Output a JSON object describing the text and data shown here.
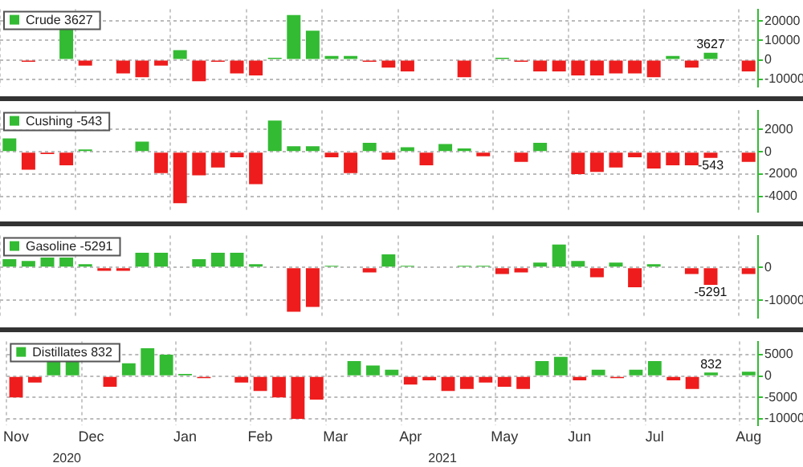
{
  "chart_data": [
    {
      "type": "bar",
      "categories": [
        null,
        null,
        null,
        null,
        null,
        null,
        null,
        null,
        null,
        null,
        null,
        null,
        null,
        null,
        null,
        null,
        null,
        null,
        null,
        null,
        null,
        null,
        null,
        null,
        null,
        null,
        null,
        null,
        null,
        null,
        null,
        null,
        null,
        null,
        null,
        null,
        null,
        null,
        null,
        null
      ],
      "series": [
        {
          "name": "Crude 3627",
          "color": "#33bb33",
          "values": [
            0,
            -1000,
            0,
            16000,
            -3000,
            0,
            -7000,
            -9000,
            -3000,
            5000,
            -11000,
            -1000,
            -7000,
            -8000,
            1000,
            23000,
            15000,
            2000,
            2000,
            -1000,
            -4000,
            -6000,
            0,
            0,
            -9000,
            0,
            1000,
            -1000,
            -6000,
            -6000,
            -8000,
            -8000,
            -7000,
            -7000,
            -9000,
            2000,
            -4000,
            3627,
            null,
            -6000
          ],
          "colors": [
            "#33bb33",
            "#ee1c1c",
            "#ee1c1c",
            "#33bb33",
            "#ee1c1c",
            "#ee1c1c",
            "#ee1c1c",
            "#ee1c1c",
            "#ee1c1c",
            "#33bb33",
            "#ee1c1c",
            "#ee1c1c",
            "#ee1c1c",
            "#ee1c1c",
            "#33bb33",
            "#33bb33",
            "#33bb33",
            "#33bb33",
            "#33bb33",
            "#ee1c1c",
            "#ee1c1c",
            "#ee1c1c",
            "#33bb33",
            "#33bb33",
            "#ee1c1c",
            "#ee1c1c",
            "#33bb33",
            "#ee1c1c",
            "#ee1c1c",
            "#ee1c1c",
            "#ee1c1c",
            "#ee1c1c",
            "#ee1c1c",
            "#ee1c1c",
            "#ee1c1c",
            "#33bb33",
            "#ee1c1c",
            "#33bb33",
            null,
            "#ee1c1c"
          ],
          "value_labels": [
            null,
            null,
            null,
            null,
            null,
            null,
            null,
            null,
            null,
            null,
            null,
            null,
            null,
            null,
            null,
            null,
            null,
            null,
            null,
            null,
            null,
            null,
            null,
            null,
            null,
            null,
            null,
            null,
            null,
            null,
            null,
            null,
            null,
            null,
            null,
            null,
            null,
            "3627",
            null,
            null
          ]
        }
      ],
      "ylim": [
        -14000,
        26000
      ],
      "yticks": [
        -10000,
        0,
        10000,
        20000
      ],
      "grid": true,
      "legend": "top left",
      "tick_labels": "y"
    },
    {
      "type": "bar",
      "categories": [
        null,
        null,
        null,
        null,
        null,
        null,
        null,
        null,
        null,
        null,
        null,
        null,
        null,
        null,
        null,
        null,
        null,
        null,
        null,
        null,
        null,
        null,
        null,
        null,
        null,
        null,
        null,
        null,
        null,
        null,
        null,
        null,
        null,
        null,
        null,
        null,
        null,
        null,
        null,
        null
      ],
      "series": [
        {
          "name": "Cushing -543",
          "color": "#33bb33",
          "values": [
            1200,
            -1600,
            -200,
            -1200,
            200,
            0,
            0,
            900,
            -1900,
            -4600,
            -2100,
            -1400,
            -500,
            -2900,
            2800,
            500,
            500,
            -500,
            -1900,
            800,
            -700,
            400,
            -1200,
            700,
            300,
            -400,
            0,
            -900,
            800,
            0,
            -2000,
            -1800,
            -1400,
            -500,
            -1500,
            -1200,
            -1200,
            -543,
            null,
            -900
          ],
          "colors": [
            "#33bb33",
            "#ee1c1c",
            "#ee1c1c",
            "#ee1c1c",
            "#33bb33",
            "#33bb33",
            "#33bb33",
            "#33bb33",
            "#ee1c1c",
            "#ee1c1c",
            "#ee1c1c",
            "#ee1c1c",
            "#ee1c1c",
            "#ee1c1c",
            "#33bb33",
            "#33bb33",
            "#33bb33",
            "#ee1c1c",
            "#ee1c1c",
            "#33bb33",
            "#ee1c1c",
            "#33bb33",
            "#ee1c1c",
            "#33bb33",
            "#33bb33",
            "#ee1c1c",
            "#ee1c1c",
            "#ee1c1c",
            "#33bb33",
            "#33bb33",
            "#ee1c1c",
            "#ee1c1c",
            "#ee1c1c",
            "#ee1c1c",
            "#ee1c1c",
            "#ee1c1c",
            "#ee1c1c",
            "#ee1c1c",
            null,
            "#ee1c1c"
          ],
          "value_labels": [
            null,
            null,
            null,
            null,
            null,
            null,
            null,
            null,
            null,
            null,
            null,
            null,
            null,
            null,
            null,
            null,
            null,
            null,
            null,
            null,
            null,
            null,
            null,
            null,
            null,
            null,
            null,
            null,
            null,
            null,
            null,
            null,
            null,
            null,
            null,
            null,
            null,
            "-543",
            null,
            null
          ]
        }
      ],
      "ylim": [
        -5400,
        3700
      ],
      "yticks": [
        -4000,
        -2000,
        0,
        2000
      ],
      "grid": true,
      "legend": "top left",
      "tick_labels": "y"
    },
    {
      "type": "bar",
      "categories": [
        null,
        null,
        null,
        null,
        null,
        null,
        null,
        null,
        null,
        null,
        null,
        null,
        null,
        null,
        null,
        null,
        null,
        null,
        null,
        null,
        null,
        null,
        null,
        null,
        null,
        null,
        null,
        null,
        null,
        null,
        null,
        null,
        null,
        null,
        null,
        null,
        null,
        null,
        null,
        null
      ],
      "series": [
        {
          "name": "Gasoline -5291",
          "color": "#33bb33",
          "values": [
            2500,
            2000,
            3000,
            3000,
            1000,
            -1000,
            -1000,
            4500,
            4500,
            0,
            2500,
            4500,
            4500,
            1000,
            0,
            -13500,
            -12000,
            500,
            0,
            -1500,
            4000,
            500,
            0,
            0,
            500,
            500,
            -2000,
            -1500,
            1500,
            7000,
            2000,
            -3000,
            1500,
            -6000,
            1000,
            0,
            -2000,
            -5291,
            null,
            -2000
          ],
          "colors": [
            "#33bb33",
            "#33bb33",
            "#33bb33",
            "#33bb33",
            "#33bb33",
            "#ee1c1c",
            "#ee1c1c",
            "#33bb33",
            "#33bb33",
            "#33bb33",
            "#33bb33",
            "#33bb33",
            "#33bb33",
            "#33bb33",
            "#33bb33",
            "#ee1c1c",
            "#ee1c1c",
            "#33bb33",
            "#33bb33",
            "#ee1c1c",
            "#33bb33",
            "#33bb33",
            "#33bb33",
            "#33bb33",
            "#33bb33",
            "#33bb33",
            "#ee1c1c",
            "#ee1c1c",
            "#33bb33",
            "#33bb33",
            "#33bb33",
            "#ee1c1c",
            "#33bb33",
            "#ee1c1c",
            "#33bb33",
            "#33bb33",
            "#ee1c1c",
            "#ee1c1c",
            null,
            "#ee1c1c"
          ],
          "value_labels": [
            null,
            null,
            null,
            null,
            null,
            null,
            null,
            null,
            null,
            null,
            null,
            null,
            null,
            null,
            null,
            null,
            null,
            null,
            null,
            null,
            null,
            null,
            null,
            null,
            null,
            null,
            null,
            null,
            null,
            null,
            null,
            null,
            null,
            null,
            null,
            null,
            null,
            "-5291",
            null,
            null
          ]
        }
      ],
      "ylim": [
        -15400,
        9700
      ],
      "yticks": [
        -10000,
        0
      ],
      "grid": true,
      "legend": "top left",
      "tick_labels": "y"
    },
    {
      "type": "bar",
      "categories": [
        "Nov",
        null,
        null,
        null,
        "Dec",
        null,
        null,
        null,
        null,
        "Jan",
        null,
        null,
        null,
        "Feb",
        null,
        null,
        null,
        "Mar",
        null,
        null,
        null,
        "Apr",
        null,
        null,
        null,
        null,
        "May",
        null,
        null,
        null,
        "Jun",
        null,
        null,
        null,
        "Jul",
        null,
        null,
        null,
        null,
        "Aug"
      ],
      "series": [
        {
          "name": "Distillates 832",
          "color": "#33bb33",
          "values": [
            -5000,
            -1500,
            3500,
            3500,
            0,
            -2500,
            3000,
            6500,
            5000,
            500,
            -500,
            0,
            -1500,
            -3500,
            -5000,
            -10000,
            -5500,
            0,
            3500,
            2500,
            1500,
            -2000,
            -1000,
            -3500,
            -3000,
            -1500,
            -2500,
            -3000,
            3500,
            4500,
            -1000,
            1500,
            -500,
            1500,
            3500,
            -1000,
            -3000,
            832,
            null,
            1000
          ],
          "colors": [
            "#ee1c1c",
            "#ee1c1c",
            "#33bb33",
            "#33bb33",
            "#33bb33",
            "#ee1c1c",
            "#33bb33",
            "#33bb33",
            "#33bb33",
            "#33bb33",
            "#ee1c1c",
            "#ee1c1c",
            "#ee1c1c",
            "#ee1c1c",
            "#ee1c1c",
            "#ee1c1c",
            "#ee1c1c",
            "#33bb33",
            "#33bb33",
            "#33bb33",
            "#33bb33",
            "#ee1c1c",
            "#ee1c1c",
            "#ee1c1c",
            "#ee1c1c",
            "#ee1c1c",
            "#ee1c1c",
            "#ee1c1c",
            "#33bb33",
            "#33bb33",
            "#ee1c1c",
            "#33bb33",
            "#ee1c1c",
            "#33bb33",
            "#33bb33",
            "#ee1c1c",
            "#ee1c1c",
            "#33bb33",
            null,
            "#33bb33"
          ],
          "value_labels": [
            null,
            null,
            null,
            null,
            null,
            null,
            null,
            null,
            null,
            null,
            null,
            null,
            null,
            null,
            null,
            null,
            null,
            null,
            null,
            null,
            null,
            null,
            null,
            null,
            null,
            null,
            null,
            null,
            null,
            null,
            null,
            null,
            null,
            null,
            null,
            null,
            null,
            "832",
            null,
            null
          ]
        }
      ],
      "ylim": [
        -11600,
        8100
      ],
      "yticks": [
        -10000,
        -5000,
        0,
        5000
      ],
      "grid": true,
      "legend": "top left",
      "annotations": [
        "2020",
        "2021"
      ]
    }
  ]
}
